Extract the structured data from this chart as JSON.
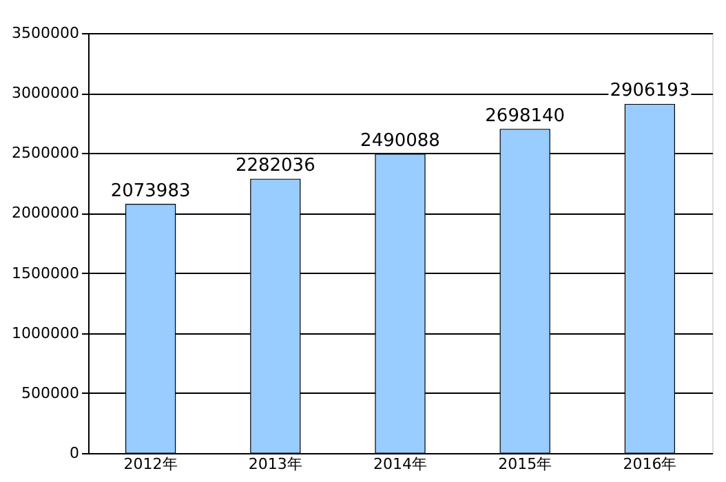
{
  "chart_data": {
    "type": "bar",
    "categories": [
      "2012年",
      "2013年",
      "2014年",
      "2015年",
      "2016年"
    ],
    "values": [
      2073983,
      2282036,
      2490088,
      2698140,
      2906193
    ],
    "color": "#99ccff",
    "ylim": [
      0,
      3500000
    ],
    "yticks": [
      0,
      500000,
      1000000,
      1500000,
      2000000,
      2500000,
      3000000,
      3500000
    ],
    "grid": "y",
    "data_labels": true
  }
}
